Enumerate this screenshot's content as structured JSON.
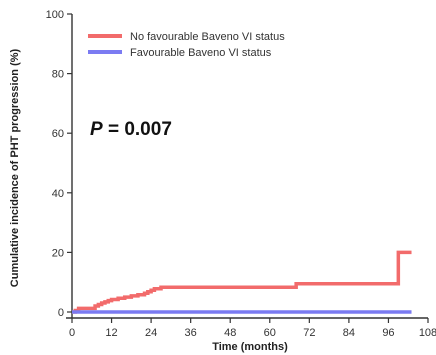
{
  "chart_data": {
    "type": "line",
    "xlabel": "Time (months)",
    "ylabel": "Cumulative incidence of PHT progression (%)",
    "xlim": [
      0,
      108
    ],
    "ylim": [
      0,
      100
    ],
    "xticks": [
      0,
      12,
      24,
      36,
      48,
      60,
      72,
      84,
      96,
      108
    ],
    "yticks": [
      0,
      20,
      40,
      60,
      80,
      100
    ],
    "annotation": {
      "p_label": "P",
      "p_value": " = 0.007"
    },
    "legend_position": "top-left",
    "series": [
      {
        "name": "No favourable Baveno VI status",
        "color": "#f26b6b",
        "step": true,
        "x": [
          0,
          1,
          2,
          6,
          7,
          8,
          9,
          10,
          11,
          12,
          14,
          16,
          18,
          20,
          22,
          23,
          24,
          25,
          27,
          30,
          40,
          55,
          67,
          68,
          80,
          90,
          98,
          99,
          103
        ],
        "y": [
          0,
          0.5,
          1.2,
          1.2,
          2.0,
          2.5,
          3.0,
          3.4,
          3.8,
          4.2,
          4.6,
          5.0,
          5.4,
          5.8,
          6.3,
          6.8,
          7.3,
          7.8,
          8.3,
          8.3,
          8.3,
          8.3,
          8.3,
          9.5,
          9.5,
          9.5,
          9.5,
          20.0,
          20.0
        ]
      },
      {
        "name": "Favourable Baveno VI status",
        "color": "#7b7bf2",
        "step": true,
        "x": [
          0,
          103
        ],
        "y": [
          0,
          0
        ]
      }
    ]
  }
}
